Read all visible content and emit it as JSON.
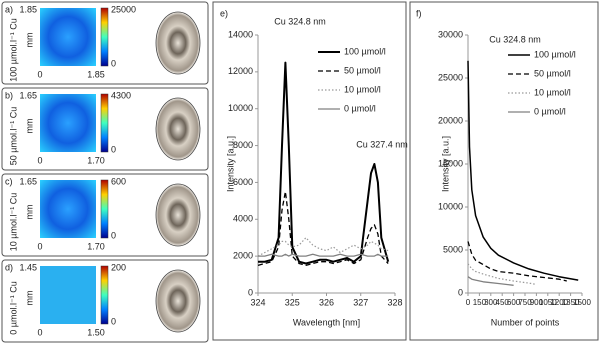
{
  "maps": [
    {
      "label": "a)",
      "side_label": "100 µmol.l⁻¹ Cu",
      "y_max": "1.85",
      "unit": "mm",
      "origin": "0",
      "x_max": "1.85",
      "cbar_max": 25000,
      "cbar_min": 0
    },
    {
      "label": "b)",
      "side_label": "50 µmol.l⁻¹ Cu",
      "y_max": "1.65",
      "unit": "mm",
      "origin": "0",
      "x_max": "1.70",
      "cbar_max": 4300,
      "cbar_min": 0
    },
    {
      "label": "c)",
      "side_label": "10 µmol.l⁻¹ Cu",
      "y_max": "1.65",
      "unit": "mm",
      "origin": "0",
      "x_max": "1.70",
      "cbar_max": 600,
      "cbar_min": 0
    },
    {
      "label": "d)",
      "side_label": "0 µmol.l⁻¹ Cu",
      "y_max": "1.45",
      "unit": "mm",
      "origin": "0",
      "x_max": "1.50",
      "cbar_max": 200,
      "cbar_min": 0
    }
  ],
  "chart_data": [
    {
      "type": "line",
      "panel_label": "e)",
      "y_label": "Intensity [a.u.]",
      "x_label": "Wavelength [nm]",
      "annotations": [
        "Cu 324.8 nm",
        "Cu 327.4 nm"
      ],
      "x": [
        324.0,
        324.2,
        324.4,
        324.6,
        324.7,
        324.8,
        324.9,
        325.0,
        325.2,
        325.4,
        325.6,
        325.8,
        326.0,
        326.2,
        326.4,
        326.6,
        326.8,
        327.0,
        327.2,
        327.3,
        327.4,
        327.5,
        327.6,
        327.8
      ],
      "series": [
        {
          "name": "100 µmol/l",
          "color": "#000000",
          "dash": "solid",
          "width": 2,
          "values": [
            1700,
            1700,
            1800,
            3000,
            8000,
            12500,
            8000,
            2500,
            1700,
            1600,
            1700,
            1800,
            1800,
            1700,
            1800,
            1900,
            1700,
            2000,
            5000,
            6500,
            7000,
            6000,
            3000,
            1700
          ]
        },
        {
          "name": "50 µmol/l",
          "color": "#000000",
          "dash": "dashed",
          "width": 1.3,
          "values": [
            1500,
            1600,
            1700,
            2500,
            4500,
            5500,
            4000,
            2000,
            1600,
            1500,
            1600,
            1700,
            1700,
            1600,
            1700,
            1800,
            1600,
            1800,
            3000,
            3500,
            3700,
            3200,
            2000,
            1600
          ]
        },
        {
          "name": "10 µmol/l",
          "color": "#999999",
          "dash": "dotted",
          "width": 1.2,
          "values": [
            2000,
            2200,
            2400,
            2600,
            2800,
            2800,
            2600,
            2500,
            2600,
            3000,
            2600,
            2400,
            2300,
            2500,
            2200,
            2400,
            2600,
            2400,
            2600,
            2800,
            2700,
            2600,
            2400,
            2300
          ]
        },
        {
          "name": "0 µmol/l",
          "color": "#808080",
          "dash": "solid",
          "width": 1.3,
          "values": [
            2000,
            2000,
            2100,
            2000,
            2000,
            2100,
            2000,
            2100,
            2000,
            2000,
            2100,
            2000,
            2000,
            2000,
            2100,
            2000,
            2000,
            2100,
            2000,
            2000,
            2000,
            2100,
            2000,
            2000
          ]
        }
      ],
      "xlim": [
        324,
        328
      ],
      "xticks": [
        324,
        325,
        326,
        327,
        328
      ],
      "ylim": [
        0,
        14000
      ],
      "yticks": [
        0,
        2000,
        4000,
        6000,
        8000,
        10000,
        12000,
        14000
      ]
    },
    {
      "type": "line",
      "panel_label": "f)",
      "y_label": "Intensity [a.u.]",
      "x_label": "Number of points",
      "annotations": [
        "Cu 324.8 nm"
      ],
      "series": [
        {
          "name": "100 µmol/l",
          "color": "#000000",
          "dash": "solid",
          "width": 1.5,
          "x": [
            0,
            20,
            50,
            100,
            200,
            300,
            400,
            600,
            800,
            1000,
            1200,
            1450
          ],
          "values": [
            27000,
            17000,
            12000,
            9000,
            6500,
            5200,
            4400,
            3500,
            2800,
            2300,
            1900,
            1500
          ]
        },
        {
          "name": "50 µmol/l",
          "color": "#000000",
          "dash": "dashed",
          "width": 1.3,
          "x": [
            0,
            50,
            100,
            200,
            300,
            400,
            600,
            800,
            1000,
            1200,
            1300
          ],
          "values": [
            6000,
            4500,
            3800,
            3300,
            2800,
            2500,
            2300,
            2000,
            1800,
            1600,
            1400
          ]
        },
        {
          "name": "10 µmol/l",
          "color": "#999999",
          "dash": "dotted",
          "width": 1.2,
          "x": [
            0,
            50,
            100,
            200,
            400,
            600,
            800,
            900
          ],
          "values": [
            3400,
            2800,
            2500,
            2200,
            1700,
            1400,
            1150,
            1000
          ]
        },
        {
          "name": "0 µmol/l",
          "color": "#808080",
          "dash": "solid",
          "width": 1.3,
          "x": [
            0,
            50,
            100,
            200,
            400,
            600
          ],
          "values": [
            1900,
            1600,
            1500,
            1300,
            1100,
            900
          ]
        }
      ],
      "xlim": [
        0,
        1500
      ],
      "xticks": [
        0,
        150,
        300,
        450,
        600,
        750,
        900,
        1050,
        1200,
        1350,
        1500
      ],
      "ylim": [
        0,
        30000
      ],
      "yticks": [
        0,
        5000,
        10000,
        15000,
        20000,
        25000,
        30000
      ]
    }
  ]
}
